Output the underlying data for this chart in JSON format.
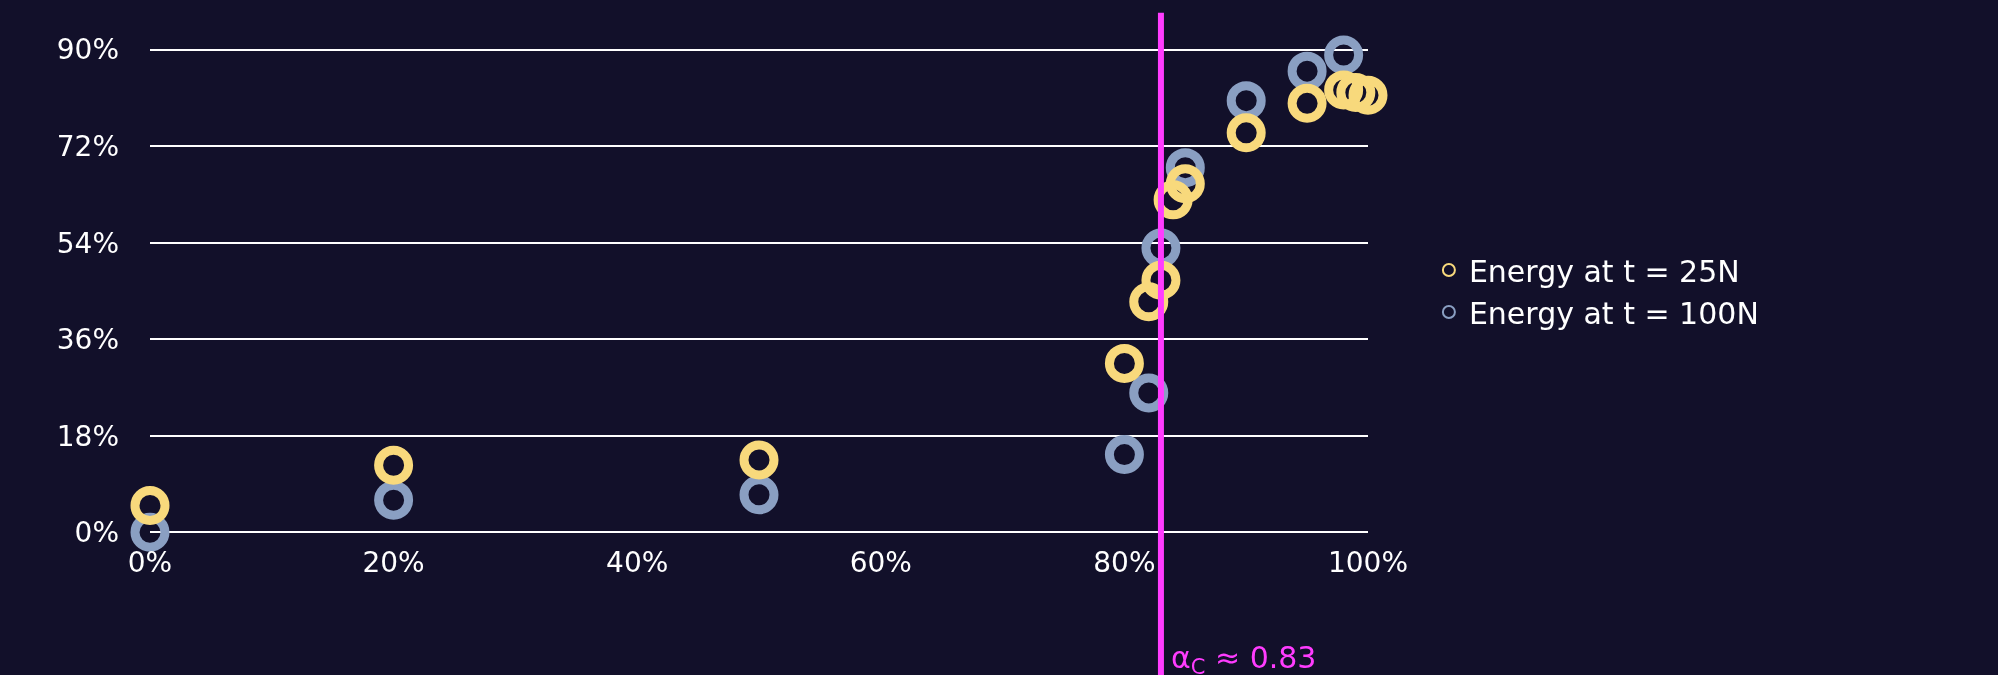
{
  "chart_data": {
    "type": "scatter",
    "marker": "circle",
    "grid": "y",
    "legend": "right",
    "xlim": [
      0,
      100
    ],
    "xticks": [
      {
        "value": 0,
        "label": "0%"
      },
      {
        "value": 20,
        "label": "20%"
      },
      {
        "value": 40,
        "label": "40%"
      },
      {
        "value": 60,
        "label": "60%"
      },
      {
        "value": 80,
        "label": "80%"
      },
      {
        "value": 100,
        "label": "100%"
      }
    ],
    "ylim": [
      -0.5,
      90.5
    ],
    "yticks": [
      {
        "value": 0,
        "label": "0%"
      },
      {
        "value": 18,
        "label": "18%"
      },
      {
        "value": 36,
        "label": "36%"
      },
      {
        "value": 54,
        "label": "54%"
      },
      {
        "value": 72,
        "label": "72%"
      },
      {
        "value": 90,
        "label": "90%"
      }
    ],
    "series": [
      {
        "name": "Energy at t = 100N",
        "color": "#8a9fc2",
        "x": [
          0,
          20,
          50,
          80,
          82,
          83,
          85,
          90,
          95,
          98
        ],
        "values": [
          0,
          6,
          7,
          14.5,
          26,
          53,
          68,
          80.5,
          86,
          89
        ]
      },
      {
        "name": "Energy at t = 25N",
        "color": "#f8d97c",
        "x": [
          0,
          20,
          50,
          80,
          82,
          83,
          84,
          85,
          90,
          95,
          98,
          99,
          100
        ],
        "values": [
          5,
          12.5,
          13.5,
          31.5,
          43,
          47,
          62,
          65,
          74.5,
          80,
          82.5,
          82,
          81.5
        ]
      }
    ],
    "ref_lines": [
      {
        "axis": "x",
        "value": 83,
        "label": "α$_{C}$ ≈ 0.83",
        "color": "#ff3cff"
      }
    ]
  }
}
